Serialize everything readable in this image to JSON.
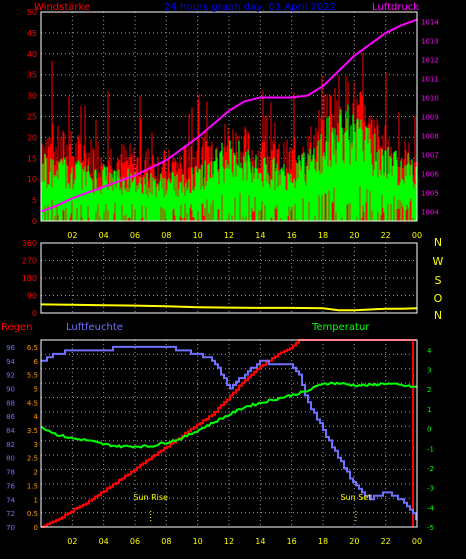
{
  "colors": {
    "background": "#000000",
    "grid": "#9a9a9a",
    "frame": "#ffffff",
    "x_ticks": "#ffff00",
    "wind": "#ff0000",
    "gust": "#00ff00",
    "pressure": "#ff00ff",
    "title": "#0000ff",
    "direction": "#ffff00",
    "rain": "#ff0000",
    "humidity": "#7070ff",
    "temperature": "#00ff00",
    "sun_labels": "#ffff00",
    "rain_ticks": "#ff9900",
    "humidity_ticks": "#7070ff",
    "temperature_ticks": "#00ff00"
  },
  "chart_data": [
    {
      "type": "line",
      "title": "24 hours graph day, 01 April 2022",
      "ylabel_left": "Windstärke",
      "ylabel_right": "Luftdruck",
      "x_ticks": [
        "02",
        "04",
        "06",
        "08",
        "10",
        "12",
        "14",
        "16",
        "18",
        "20",
        "22",
        "00"
      ],
      "ylim_left": [
        0,
        50
      ],
      "ylim_right": [
        1003.5,
        1014.5
      ],
      "y_ticks_left": [
        "0",
        "5",
        "10",
        "15",
        "20",
        "25",
        "30",
        "35",
        "40",
        "45",
        "50"
      ],
      "y_ticks_right": [
        "1004",
        "1005",
        "1006",
        "1007",
        "1008",
        "1009",
        "1010",
        "1011",
        "1012",
        "1013",
        "1014"
      ],
      "grid": true,
      "series": [
        {
          "name": "Windstärke",
          "description_of_values": "red: wind gust envelope, knots-like units on left axis",
          "x_hours": [
            0,
            1,
            2,
            3,
            4,
            5,
            6,
            7,
            8,
            9,
            10,
            11,
            12,
            13,
            14,
            15,
            16,
            17,
            18,
            19,
            20,
            21,
            22,
            23,
            24
          ],
          "values": [
            22,
            20,
            19,
            18,
            18,
            17,
            16,
            16,
            15,
            16,
            18,
            20,
            22,
            20,
            18,
            17,
            17,
            19,
            26,
            32,
            30,
            24,
            20,
            18,
            16
          ]
        },
        {
          "name": "Gust",
          "x_hours": [
            0,
            1,
            2,
            3,
            4,
            5,
            6,
            7,
            8,
            9,
            10,
            11,
            12,
            13,
            14,
            15,
            16,
            17,
            18,
            19,
            20,
            21,
            22,
            23,
            24
          ],
          "values": [
            10,
            9,
            9,
            8,
            8,
            8,
            7,
            7,
            7,
            7,
            8,
            10,
            12,
            11,
            9,
            9,
            9,
            10,
            14,
            17,
            16,
            13,
            11,
            10,
            9
          ]
        },
        {
          "name": "Luftdruck",
          "x_hours": [
            0,
            1,
            2,
            3,
            4,
            5,
            6,
            7,
            8,
            9,
            10,
            11,
            12,
            13,
            14,
            15,
            16,
            17,
            18,
            19,
            20,
            21,
            22,
            23,
            24
          ],
          "values": [
            1004.0,
            1004.3,
            1004.7,
            1005.0,
            1005.3,
            1005.6,
            1005.9,
            1006.3,
            1006.7,
            1007.3,
            1007.9,
            1008.6,
            1009.3,
            1009.8,
            1010.0,
            1010.0,
            1010.0,
            1010.1,
            1010.6,
            1011.4,
            1012.2,
            1012.8,
            1013.4,
            1013.8,
            1014.1
          ]
        }
      ]
    },
    {
      "type": "line",
      "y_ticks": [
        "0",
        "90",
        "180",
        "270",
        "360"
      ],
      "ylim": [
        0,
        360
      ],
      "direction_labels": [
        "N",
        "W",
        "S",
        "O",
        "N"
      ],
      "grid": true,
      "series": [
        {
          "name": "Wind direction",
          "x_hours": [
            0,
            2,
            4,
            6,
            8,
            10,
            12,
            14,
            16,
            18,
            19,
            20,
            21,
            22,
            23,
            24
          ],
          "values": [
            44,
            42,
            40,
            38,
            35,
            30,
            28,
            26,
            26,
            24,
            14,
            14,
            18,
            22,
            22,
            24
          ]
        }
      ]
    },
    {
      "type": "line",
      "label_left_outer": "Regen",
      "label_left_inner": "Luftfeuchte",
      "label_right": "Temperatur",
      "x_ticks": [
        "02",
        "04",
        "06",
        "08",
        "10",
        "12",
        "14",
        "16",
        "18",
        "20",
        "22",
        "00"
      ],
      "y_ticks_rain": [
        "0",
        "0.5",
        "1",
        "1.5",
        "2",
        "2.5",
        "3",
        "3.5",
        "4",
        "4.5",
        "5",
        "5.5",
        "6",
        "6.5"
      ],
      "y_ticks_humidity": [
        "70",
        "72",
        "74",
        "76",
        "78",
        "80",
        "82",
        "84",
        "86",
        "88",
        "90",
        "92",
        "94",
        "96"
      ],
      "y_ticks_temperature": [
        "-5",
        "-4",
        "-3",
        "-2",
        "-1",
        "0",
        "1",
        "2",
        "3",
        "4"
      ],
      "ylim_rain": [
        0,
        6.75
      ],
      "ylim_humidity": [
        70,
        97
      ],
      "ylim_temperature": [
        -5,
        4.5
      ],
      "annotations": [
        {
          "text": "Sun Rise",
          "x_hour": 7.0
        },
        {
          "text": "Sun Set",
          "x_hour": 20.1
        }
      ],
      "series": [
        {
          "name": "Regen",
          "x_hours": [
            0,
            1,
            2,
            3,
            4,
            5,
            6,
            7,
            8,
            9,
            10,
            11,
            12,
            13,
            14,
            15,
            16,
            16.5,
            24
          ],
          "values": [
            0,
            0.25,
            0.6,
            0.9,
            1.3,
            1.7,
            2.1,
            2.5,
            2.9,
            3.3,
            3.7,
            4.1,
            4.7,
            5.3,
            5.8,
            6.2,
            6.5,
            6.75,
            6.75
          ]
        },
        {
          "name": "Luftfeuchte",
          "x_hours": [
            0,
            1,
            2,
            3,
            4,
            5,
            6,
            7,
            8,
            9,
            10,
            11,
            11.5,
            12,
            13,
            14,
            15,
            16,
            16.5,
            17,
            18,
            19,
            20,
            21,
            22,
            23,
            24
          ],
          "values": [
            94,
            95,
            95.5,
            95.5,
            95.5,
            96,
            96,
            96,
            96,
            95.5,
            95,
            94,
            92,
            90,
            92,
            94,
            93.5,
            93.5,
            92,
            88,
            84,
            80,
            76,
            74,
            75,
            74,
            71
          ]
        },
        {
          "name": "Temperatur",
          "x_hours": [
            0,
            1,
            2,
            3,
            4,
            5,
            6,
            7,
            8,
            9,
            10,
            11,
            12,
            13,
            14,
            15,
            16,
            17,
            18,
            19,
            20,
            21,
            22,
            23,
            24
          ],
          "values": [
            0.1,
            -0.3,
            -0.5,
            -0.6,
            -0.8,
            -0.9,
            -0.9,
            -0.9,
            -0.7,
            -0.5,
            -0.1,
            0.3,
            0.7,
            1.1,
            1.3,
            1.5,
            1.7,
            1.9,
            2.3,
            2.3,
            2.2,
            2.2,
            2.3,
            2.2,
            2.1
          ]
        }
      ]
    }
  ]
}
